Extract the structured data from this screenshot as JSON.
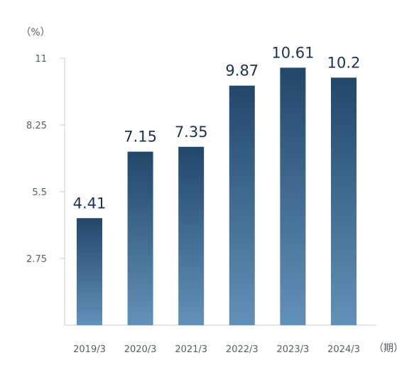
{
  "chart_data": {
    "type": "bar",
    "y_unit": "（%）",
    "x_unit": "（期）",
    "categories": [
      "2019/3",
      "2020/3",
      "2021/3",
      "2022/3",
      "2023/3",
      "2024/3"
    ],
    "values": [
      4.41,
      7.15,
      7.35,
      9.87,
      10.61,
      10.2
    ],
    "value_labels": [
      "4.41",
      "7.15",
      "7.35",
      "9.87",
      "10.61",
      "10.2"
    ],
    "y_ticks": [
      "2.75",
      "5.5",
      "8.25",
      "11"
    ],
    "y_tick_values": [
      2.75,
      5.5,
      8.25,
      11
    ],
    "ylim": [
      0,
      11
    ],
    "grid": false,
    "colors": {
      "bar_top": "#22476b",
      "bar_bottom": "#6291b7",
      "label": "#1d3250",
      "axis": "#c6ccd3",
      "tick": "#555e6a"
    }
  }
}
